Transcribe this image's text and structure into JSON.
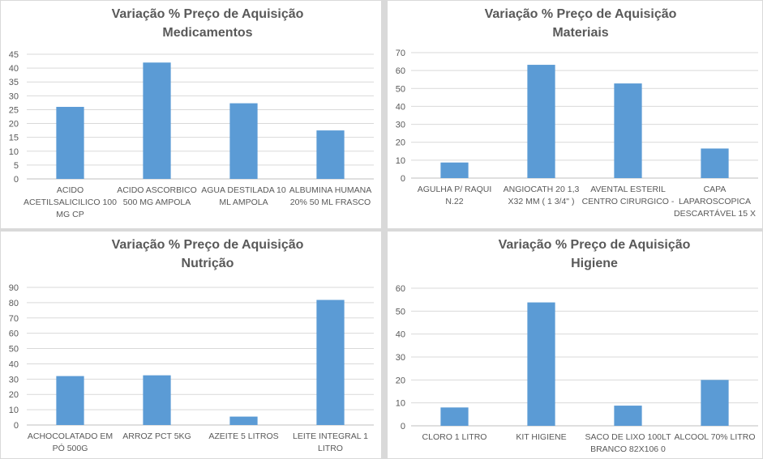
{
  "chart_data": [
    {
      "type": "bar",
      "title": [
        "Variação % Preço de Aquisição",
        "Medicamentos"
      ],
      "categories": [
        [
          "ACIDO",
          "ACETILSALICILICO 100",
          "MG CP"
        ],
        [
          "ACIDO ASCORBICO",
          "500 MG AMPOLA"
        ],
        [
          "AGUA DESTILADA 10",
          "ML AMPOLA"
        ],
        [
          "ALBUMINA HUMANA",
          "20% 50 ML FRASCO"
        ]
      ],
      "values": [
        26,
        42,
        27.3,
        17.5
      ],
      "ylim": [
        0,
        45
      ],
      "ytick_step": 5,
      "grid": true,
      "legend": "none",
      "color": "#5b9bd5"
    },
    {
      "type": "bar",
      "title": [
        "Variação % Preço de Aquisição",
        "Materiais"
      ],
      "categories": [
        [
          "AGULHA P/ RAQUI",
          "N.22"
        ],
        [
          "ANGIOCATH 20 1,3",
          "X32 MM ( 1 3/4\" )"
        ],
        [
          "AVENTAL ESTERIL",
          "CENTRO CIRURGICO -"
        ],
        [
          "CAPA",
          "LAPAROSCOPICA",
          "DESCARTÁVEL 15 X"
        ]
      ],
      "values": [
        8.7,
        63.2,
        52.8,
        16.5
      ],
      "ylim": [
        0,
        70
      ],
      "ytick_step": 10,
      "grid": true,
      "legend": "none",
      "color": "#5b9bd5"
    },
    {
      "type": "bar",
      "title": [
        "Variação % Preço de Aquisição",
        "Nutrição"
      ],
      "categories": [
        [
          "ACHOCOLATADO EM",
          "PÓ 500G"
        ],
        [
          "ARROZ PCT 5KG"
        ],
        [
          "AZEITE 5 LITROS"
        ],
        [
          "LEITE INTEGRAL 1",
          "LITRO"
        ]
      ],
      "values": [
        32,
        32.5,
        5.5,
        81.8
      ],
      "ylim": [
        0,
        90
      ],
      "ytick_step": 10,
      "grid": true,
      "legend": "none",
      "color": "#5b9bd5"
    },
    {
      "type": "bar",
      "title": [
        "Variação % Preço de Aquisição",
        "Higiene"
      ],
      "categories": [
        [
          "CLORO 1 LITRO"
        ],
        [
          "KIT HIGIENE"
        ],
        [
          "SACO DE LIXO 100LT",
          "BRANCO 82X106  0"
        ],
        [
          "ALCOOL 70% LITRO"
        ]
      ],
      "values": [
        8,
        53.8,
        8.8,
        20
      ],
      "ylim": [
        0,
        60
      ],
      "ytick_step": 10,
      "grid": true,
      "legend": "none",
      "color": "#5b9bd5"
    }
  ]
}
